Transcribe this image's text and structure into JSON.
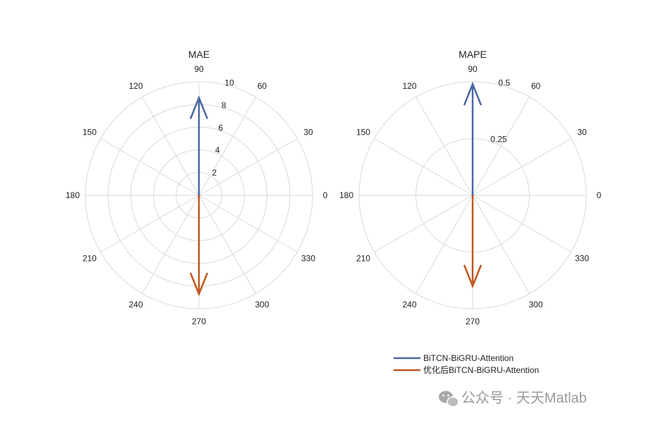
{
  "chart_data": [
    {
      "type": "polar-compass",
      "title": "MAE",
      "angle_ticks": [
        "0",
        "30",
        "60",
        "90",
        "120",
        "150",
        "180",
        "210",
        "240",
        "270",
        "300",
        "330"
      ],
      "radial_ticks": [
        "2",
        "4",
        "6",
        "8",
        "10"
      ],
      "rlim": [
        0,
        10
      ],
      "grid": true,
      "series": [
        {
          "name": "BiTCN-BiGRU-Attention",
          "theta_deg": 90,
          "r": 8.6,
          "color": "#4a67a1"
        },
        {
          "name": "优化后BiTCN-BiGRU-Attention",
          "theta_deg": 270,
          "r": 8.7,
          "color": "#c0561f"
        }
      ]
    },
    {
      "type": "polar-compass",
      "title": "MAPE",
      "angle_ticks": [
        "0",
        "30",
        "60",
        "90",
        "120",
        "150",
        "180",
        "210",
        "240",
        "270",
        "300",
        "330"
      ],
      "radial_ticks": [
        "0.25",
        "0.5"
      ],
      "rlim": [
        0,
        0.5
      ],
      "grid": true,
      "series": [
        {
          "name": "BiTCN-BiGRU-Attention",
          "theta_deg": 90,
          "r": 0.49,
          "color": "#4a67a1"
        },
        {
          "name": "优化后BiTCN-BiGRU-Attention",
          "theta_deg": 270,
          "r": 0.4,
          "color": "#c0561f"
        }
      ]
    }
  ],
  "legend": {
    "placement": "bottom-right",
    "items": [
      {
        "label": "BiTCN-BiGRU-Attention",
        "color": "#4a67a1"
      },
      {
        "label": "优化后BiTCN-BiGRU-Attention",
        "color": "#c0561f"
      }
    ]
  },
  "watermark": {
    "text": "公众号 · 天天Matlab",
    "icon": "wechat-icon"
  }
}
